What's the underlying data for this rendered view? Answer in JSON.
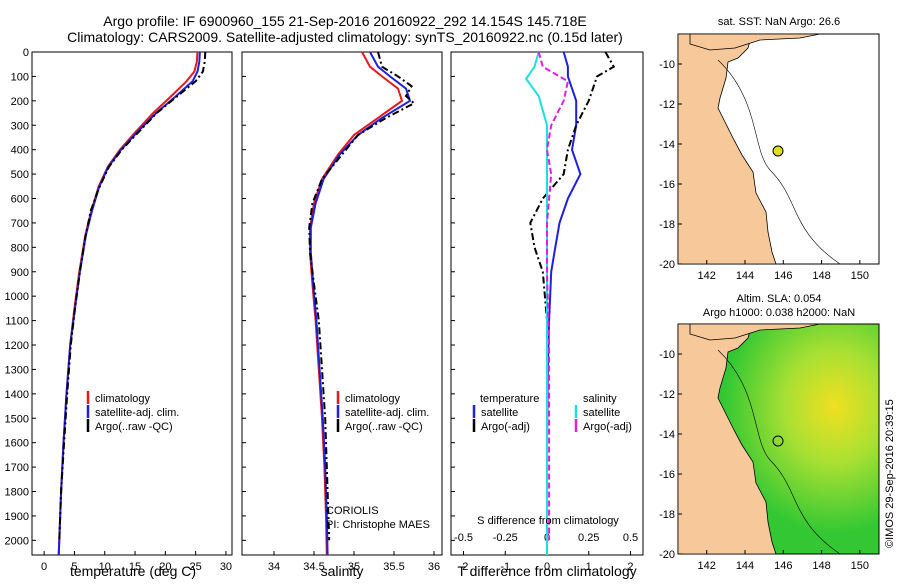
{
  "title": {
    "line1": "Argo profile: IF 6900960_155 21-Sep-2016 20160922_292 14.154S 145.718E",
    "line2": "Climatology: CARS2009. Satellite-adjusted climatology: synTS_20160922.nc (0.15d later)"
  },
  "colors": {
    "climatology": "#e41a1c",
    "satellite": "#1f1fdc",
    "argo": "#000000",
    "sat_sal": "#22dddd",
    "argo_sal": "#e020e0",
    "land": "#f6c89a",
    "map_green": "#33cc33"
  },
  "footer": {
    "credit": "©IMOS 29-Sep-2016 20:39:15",
    "institution": "CORIOLIS",
    "pi": "PI: Christophe MAES"
  },
  "legend_profiles": [
    "climatology",
    "satellite-adj. clim.",
    "Argo(..raw -QC)"
  ],
  "legend_diff": {
    "temp_header": "temperature",
    "sal_header": "salinity",
    "satellite": "satellite",
    "argo": "Argo(-adj)"
  },
  "maps": {
    "sst": {
      "title": "sat. SST: NaN Argo: 26.6"
    },
    "sla": {
      "title1": "Altim. SLA: 0.054",
      "title2": "Argo h1000: 0.038 h2000: NaN"
    },
    "float_position": {
      "lon": 145.718,
      "lat": -14.154
    },
    "xticks": [
      "142",
      "144",
      "146",
      "148",
      "150"
    ],
    "yticks": [
      "-10",
      "-12",
      "-14",
      "-16",
      "-18",
      "-20"
    ]
  },
  "chart_data": [
    {
      "type": "line",
      "xlabel": "temperature (deg C)",
      "xlim": [
        -2,
        31
      ],
      "xticks": [
        0,
        5,
        10,
        15,
        20,
        25,
        30
      ],
      "ylim": [
        0,
        2060
      ],
      "yticks": [
        0,
        100,
        200,
        300,
        400,
        500,
        600,
        700,
        800,
        900,
        1000,
        1100,
        1200,
        1300,
        1400,
        1500,
        1600,
        1700,
        1800,
        1900,
        2000
      ],
      "series": [
        {
          "name": "climatology",
          "values": [
            [
              25.3,
              0
            ],
            [
              25.2,
              40
            ],
            [
              24.8,
              80
            ],
            [
              23.5,
              120
            ],
            [
              21,
              180
            ],
            [
              18,
              250
            ],
            [
              15,
              330
            ],
            [
              12.5,
              400
            ],
            [
              10.5,
              470
            ],
            [
              9,
              550
            ],
            [
              7.8,
              650
            ],
            [
              6.8,
              750
            ],
            [
              5.8,
              900
            ],
            [
              5,
              1050
            ],
            [
              4.3,
              1200
            ],
            [
              3.7,
              1400
            ],
            [
              3.2,
              1600
            ],
            [
              2.8,
              1800
            ],
            [
              2.5,
              2000
            ],
            [
              2.4,
              2060
            ]
          ]
        },
        {
          "name": "satellite-adj. clim.",
          "values": [
            [
              25.7,
              0
            ],
            [
              25.6,
              40
            ],
            [
              25.3,
              80
            ],
            [
              24.5,
              120
            ],
            [
              21.8,
              180
            ],
            [
              18.5,
              250
            ],
            [
              15.3,
              330
            ],
            [
              12.7,
              400
            ],
            [
              10.6,
              470
            ],
            [
              9.1,
              550
            ],
            [
              7.9,
              650
            ],
            [
              6.9,
              750
            ],
            [
              5.9,
              900
            ],
            [
              5.1,
              1050
            ],
            [
              4.3,
              1200
            ],
            [
              3.7,
              1400
            ],
            [
              3.2,
              1600
            ],
            [
              2.8,
              1800
            ],
            [
              2.5,
              2000
            ],
            [
              2.4,
              2060
            ]
          ]
        },
        {
          "name": "Argo(..raw -QC)",
          "values": [
            [
              26.6,
              0
            ],
            [
              26.5,
              40
            ],
            [
              26.2,
              80
            ],
            [
              25,
              120
            ],
            [
              22,
              180
            ],
            [
              18.6,
              250
            ],
            [
              15.5,
              330
            ],
            [
              12.8,
              400
            ],
            [
              10.7,
              470
            ],
            [
              9,
              560
            ],
            [
              7.7,
              650
            ],
            [
              6.8,
              760
            ],
            [
              5.9,
              900
            ],
            [
              5.1,
              1050
            ],
            [
              4.4,
              1200
            ],
            [
              3.8,
              1400
            ],
            [
              3.3,
              1600
            ],
            [
              2.8,
              1800
            ],
            [
              2.5,
              2000
            ]
          ]
        }
      ]
    },
    {
      "type": "line",
      "xlabel": "salinity",
      "xlim": [
        33.6,
        36.1
      ],
      "xticks": [
        34,
        34.5,
        35,
        35.5,
        36
      ],
      "ylim": [
        0,
        2060
      ],
      "series": [
        {
          "name": "climatology",
          "values": [
            [
              35.1,
              0
            ],
            [
              35.2,
              60
            ],
            [
              35.35,
              100
            ],
            [
              35.55,
              150
            ],
            [
              35.6,
              200
            ],
            [
              35.3,
              270
            ],
            [
              35,
              340
            ],
            [
              34.8,
              420
            ],
            [
              34.6,
              520
            ],
            [
              34.5,
              620
            ],
            [
              34.45,
              720
            ],
            [
              34.45,
              820
            ],
            [
              34.48,
              950
            ],
            [
              34.52,
              1100
            ],
            [
              34.56,
              1300
            ],
            [
              34.6,
              1500
            ],
            [
              34.63,
              1700
            ],
            [
              34.65,
              1900
            ],
            [
              34.66,
              2060
            ]
          ]
        },
        {
          "name": "satellite-adj. clim.",
          "values": [
            [
              35.2,
              0
            ],
            [
              35.3,
              60
            ],
            [
              35.45,
              100
            ],
            [
              35.65,
              150
            ],
            [
              35.7,
              200
            ],
            [
              35.35,
              270
            ],
            [
              35.05,
              340
            ],
            [
              34.82,
              420
            ],
            [
              34.62,
              520
            ],
            [
              34.52,
              620
            ],
            [
              34.46,
              720
            ],
            [
              34.46,
              820
            ],
            [
              34.49,
              950
            ],
            [
              34.53,
              1100
            ],
            [
              34.57,
              1300
            ],
            [
              34.61,
              1500
            ],
            [
              34.64,
              1700
            ],
            [
              34.66,
              1900
            ],
            [
              34.67,
              2060
            ]
          ]
        },
        {
          "name": "Argo(..raw -QC)",
          "values": [
            [
              35.3,
              0
            ],
            [
              35.35,
              60
            ],
            [
              35.55,
              100
            ],
            [
              35.72,
              140
            ],
            [
              35.65,
              180
            ],
            [
              35.75,
              210
            ],
            [
              35.4,
              270
            ],
            [
              35.05,
              340
            ],
            [
              34.85,
              420
            ],
            [
              34.6,
              520
            ],
            [
              34.48,
              620
            ],
            [
              34.44,
              720
            ],
            [
              34.45,
              820
            ],
            [
              34.5,
              950
            ],
            [
              34.56,
              1100
            ],
            [
              34.6,
              1300
            ],
            [
              34.64,
              1500
            ],
            [
              34.66,
              1700
            ],
            [
              34.68,
              1900
            ],
            [
              34.69,
              2000
            ]
          ]
        }
      ]
    },
    {
      "type": "line",
      "xlabel": "T difference from climatology",
      "xlabel2": "S difference from climatology",
      "xlim": [
        -2.3,
        2.3
      ],
      "xticks": [
        -2,
        -1,
        0,
        1,
        2
      ],
      "xticks_s": [
        -0.5,
        -0.25,
        0,
        0.25,
        0.5
      ],
      "ylim": [
        0,
        2060
      ],
      "series": [
        {
          "name": "temperature satellite",
          "values": [
            [
              0.4,
              0
            ],
            [
              0.5,
              60
            ],
            [
              0.5,
              100
            ],
            [
              0.7,
              200
            ],
            [
              0.7,
              300
            ],
            [
              0.6,
              400
            ],
            [
              0.8,
              500
            ],
            [
              0.5,
              600
            ],
            [
              0.3,
              700
            ],
            [
              0.2,
              800
            ],
            [
              0.1,
              900
            ],
            [
              0.05,
              1100
            ],
            [
              0.02,
              1300
            ],
            [
              0,
              1600
            ],
            [
              0,
              2000
            ]
          ]
        },
        {
          "name": "temperature Argo(-adj)",
          "values": [
            [
              1.4,
              0
            ],
            [
              1.6,
              60
            ],
            [
              1.2,
              100
            ],
            [
              1,
              200
            ],
            [
              0.7,
              300
            ],
            [
              0.5,
              400
            ],
            [
              0.4,
              500
            ],
            [
              -0.1,
              600
            ],
            [
              -0.4,
              700
            ],
            [
              -0.3,
              800
            ],
            [
              -0.1,
              900
            ],
            [
              0,
              1100
            ],
            [
              0,
              1300
            ],
            [
              0,
              1600
            ],
            [
              0,
              2000
            ]
          ]
        },
        {
          "name": "salinity satellite",
          "values": [
            [
              -0.2,
              0
            ],
            [
              -0.3,
              60
            ],
            [
              -0.5,
              110
            ],
            [
              -0.2,
              180
            ],
            [
              0,
              300
            ],
            [
              0,
              500
            ],
            [
              0,
              700
            ],
            [
              0,
              900
            ],
            [
              0,
              1200
            ],
            [
              0,
              1600
            ],
            [
              0,
              2060
            ]
          ]
        },
        {
          "name": "salinity Argo(-adj)",
          "values": [
            [
              -0.2,
              0
            ],
            [
              -0.1,
              60
            ],
            [
              0.5,
              120
            ],
            [
              0.4,
              200
            ],
            [
              0.1,
              300
            ],
            [
              0,
              400
            ],
            [
              0.1,
              500
            ],
            [
              0,
              700
            ],
            [
              0,
              900
            ],
            [
              0.05,
              1200
            ],
            [
              0.05,
              1600
            ],
            [
              0.05,
              2000
            ]
          ]
        }
      ]
    }
  ]
}
